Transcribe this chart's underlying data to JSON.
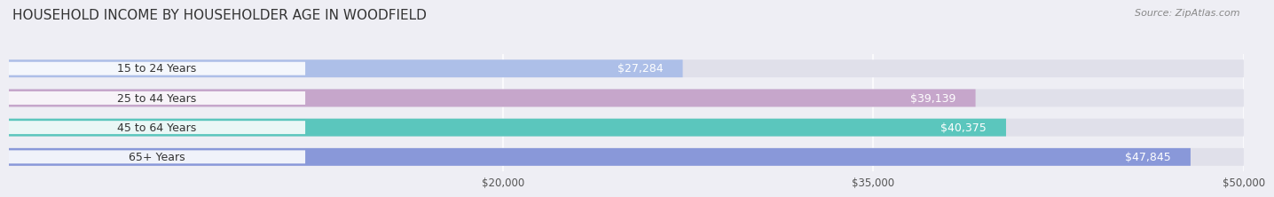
{
  "title": "HOUSEHOLD INCOME BY HOUSEHOLDER AGE IN WOODFIELD",
  "source": "Source: ZipAtlas.com",
  "categories": [
    "15 to 24 Years",
    "25 to 44 Years",
    "45 to 64 Years",
    "65+ Years"
  ],
  "values": [
    27284,
    39139,
    40375,
    47845
  ],
  "bar_colors": [
    "#a8bce8",
    "#c4a0c8",
    "#4dc4b8",
    "#8090d8"
  ],
  "bar_labels": [
    "$27,284",
    "$39,139",
    "$40,375",
    "$47,845"
  ],
  "xlim": [
    0,
    50000
  ],
  "xticks": [
    20000,
    35000,
    50000
  ],
  "xtick_labels": [
    "$20,000",
    "$35,000",
    "$50,000"
  ],
  "background_color": "#eeeef4",
  "bar_bg_color": "#e0e0ea",
  "bar_height": 0.6,
  "title_fontsize": 11,
  "source_fontsize": 8,
  "label_fontsize": 9,
  "category_fontsize": 9
}
